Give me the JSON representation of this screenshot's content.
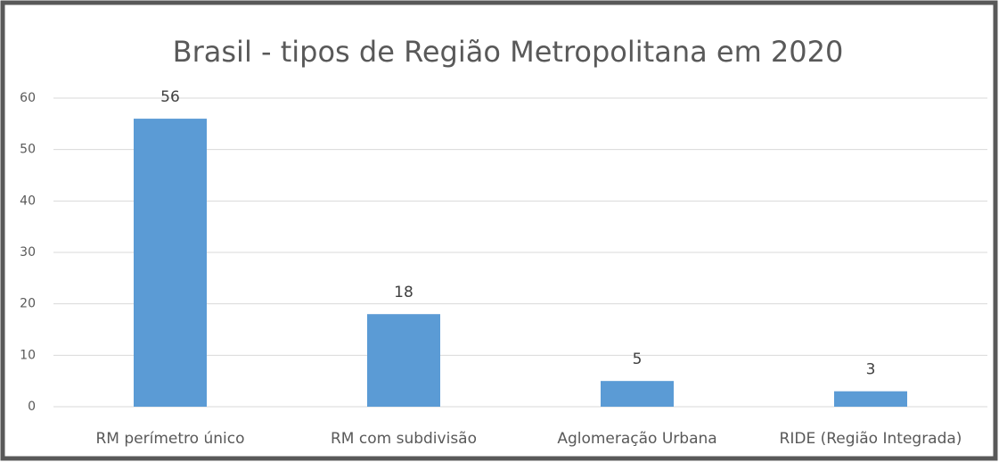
{
  "chart_data": {
    "type": "bar",
    "title": "Brasil - tipos de Região Metropolitana em 2020",
    "categories": [
      "RM perímetro único",
      "RM com subdivisão",
      "Aglomeração Urbana",
      "RIDE (Região Integrada)"
    ],
    "values": [
      56,
      18,
      5,
      3
    ],
    "color": "#5b9bd5",
    "ylim": [
      0,
      60
    ],
    "yticks": [
      0,
      10,
      20,
      30,
      40,
      50,
      60
    ],
    "grid": true
  }
}
